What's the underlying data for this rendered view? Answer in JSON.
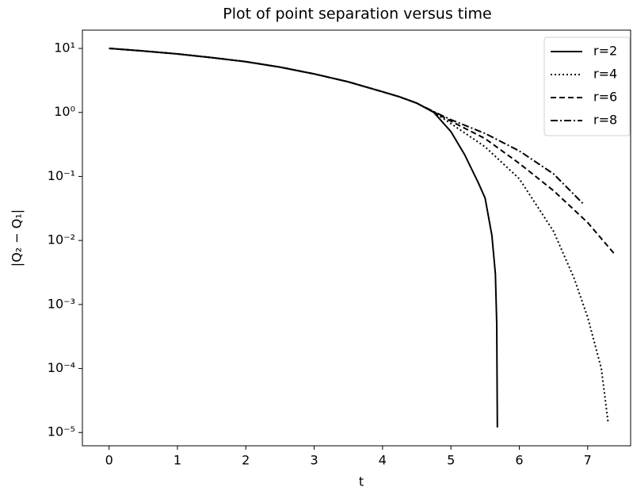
{
  "chart_data": {
    "type": "line",
    "title": "Plot of point separation versus time",
    "x_label": "t",
    "y_label": "|Q₂ − Q₁|",
    "log_y": true,
    "legend": "upper right",
    "grid": false,
    "xlim": [
      -0.39,
      7.64
    ],
    "xticks": [
      0,
      1,
      2,
      3,
      4,
      5,
      6,
      7
    ],
    "ylim": [
      19.3,
      6.2e-06
    ],
    "yticks": [
      {
        "value": 10,
        "label": "10¹"
      },
      {
        "value": 1,
        "label": "10⁰"
      },
      {
        "value": 0.1,
        "label": "10⁻¹"
      },
      {
        "value": 0.01,
        "label": "10⁻²"
      },
      {
        "value": 0.001,
        "label": "10⁻³"
      },
      {
        "value": 0.0001,
        "label": "10⁻⁴"
      },
      {
        "value": 1e-05,
        "label": "10⁻⁵"
      }
    ],
    "series": [
      {
        "name": "r=2",
        "color": "#000000",
        "dash": "solid",
        "x": [
          0,
          0.5,
          1,
          1.5,
          2,
          2.5,
          3,
          3.5,
          4,
          4.25,
          4.5,
          4.75,
          5,
          5.2,
          5.4,
          5.5,
          5.6,
          5.65,
          5.67,
          5.68
        ],
        "values": [
          10,
          9.1,
          8.2,
          7.2,
          6.2,
          5.1,
          4.0,
          3.0,
          2.1,
          1.75,
          1.4,
          1.0,
          0.5,
          0.22,
          0.08,
          0.046,
          0.012,
          0.003,
          0.0005,
          1.2e-05
        ]
      },
      {
        "name": "r=4",
        "color": "#000000",
        "dash": "dotted",
        "x": [
          0,
          0.5,
          1,
          1.5,
          2,
          2.5,
          3,
          3.5,
          4,
          4.25,
          4.5,
          4.75,
          5,
          5.5,
          6,
          6.5,
          6.8,
          7,
          7.2,
          7.3
        ],
        "values": [
          10,
          9.1,
          8.2,
          7.2,
          6.2,
          5.1,
          4.0,
          3.0,
          2.1,
          1.75,
          1.4,
          1.0,
          0.67,
          0.29,
          0.092,
          0.014,
          0.0026,
          0.00063,
          0.0001,
          1.4e-05
        ]
      },
      {
        "name": "r=6",
        "color": "#000000",
        "dash": "dashed",
        "x": [
          0,
          0.5,
          1,
          1.5,
          2,
          2.5,
          3,
          3.5,
          4,
          4.25,
          4.5,
          4.75,
          5,
          5.5,
          6,
          6.5,
          7,
          7.4
        ],
        "values": [
          10,
          9.1,
          8.2,
          7.2,
          6.2,
          5.1,
          4.0,
          3.0,
          2.1,
          1.75,
          1.4,
          1.02,
          0.73,
          0.39,
          0.16,
          0.06,
          0.019,
          0.006
        ]
      },
      {
        "name": "r=8",
        "color": "#000000",
        "dash": "dashdot",
        "x": [
          0,
          0.5,
          1,
          1.5,
          2,
          2.5,
          3,
          3.5,
          4,
          4.25,
          4.5,
          4.75,
          5,
          5.5,
          6,
          6.5,
          6.95
        ],
        "values": [
          10,
          9.1,
          8.2,
          7.2,
          6.2,
          5.1,
          4.0,
          3.0,
          2.1,
          1.75,
          1.4,
          1.03,
          0.77,
          0.47,
          0.25,
          0.11,
          0.036
        ]
      }
    ]
  }
}
